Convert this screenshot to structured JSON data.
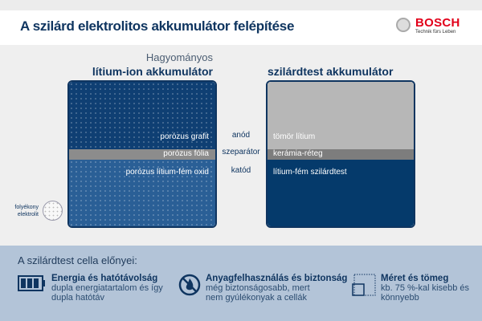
{
  "header": {
    "title": "A szilárd elektrolitos akkumulátor felépítése",
    "brand": "BOSCH",
    "tagline": "Technik fürs Leben"
  },
  "left_cell": {
    "subtitle": "Hagyományos",
    "title": "lítium-ion akkumulátor",
    "anode": "porózus grafit",
    "separator": "porózus fólia",
    "cathode": "porózus lítium-fém oxid"
  },
  "right_cell": {
    "title": "szilárdtest akkumulátor",
    "anode": "tömör lítium",
    "separator": "kerámia-réteg",
    "cathode": "lítium-fém szilárdtest"
  },
  "labels": {
    "anode": "anód",
    "separator": "szeparátor",
    "cathode": "katód"
  },
  "legend": {
    "line1": "folyékony",
    "line2": "elektrolit"
  },
  "advantages": {
    "title": "A szilárdtest cella előnyei:",
    "items": [
      {
        "icon": "battery-icon",
        "heading": "Energia és hatótávolság",
        "line1": "dupla energiatartalom és így",
        "line2": "dupla hatótáv"
      },
      {
        "icon": "no-fire-icon",
        "heading": "Anyagfelhasználás és biztonság",
        "line1": "még biztonságosabb, mert",
        "line2": "nem gyúlékonyak a cellák"
      },
      {
        "icon": "size-icon",
        "heading": "Méret és tömeg",
        "line1": "kb. 75 %-kal kisebb és",
        "line2": "könnyebb"
      }
    ]
  },
  "colors": {
    "navy": "#0f3560",
    "brand_red": "#e2001a",
    "bottom_bg": "#b3c4d8"
  }
}
